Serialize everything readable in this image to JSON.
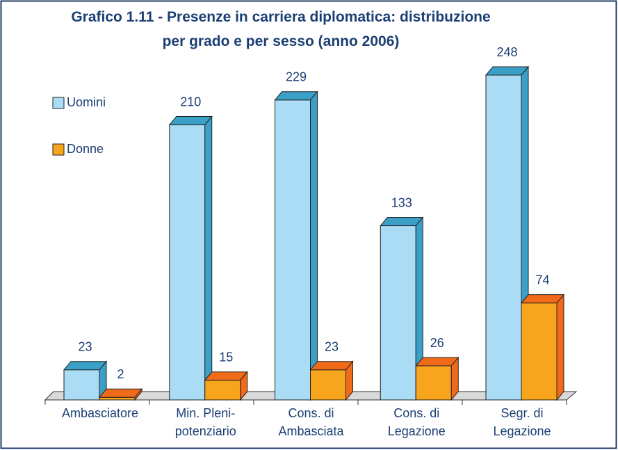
{
  "chart_data": {
    "type": "bar3d",
    "title": "Grafico 1.11 - Presenze in carriera diplomatica: distribuzione\nper grado e per sesso (anno 2006)",
    "categories": [
      "Ambasciatore",
      "Min. Pleni-\npotenziario",
      "Cons. di\nAmbasciata",
      "Cons. di\nLegazione",
      "Segr. di\nLegazione"
    ],
    "series": [
      {
        "name": "Uomini",
        "color": "#aadcf5",
        "values": [
          23,
          210,
          229,
          133,
          248
        ]
      },
      {
        "name": "Donne",
        "color": "#f8a51e",
        "values": [
          2,
          15,
          23,
          26,
          74
        ]
      }
    ],
    "legend": "upper-left"
  }
}
